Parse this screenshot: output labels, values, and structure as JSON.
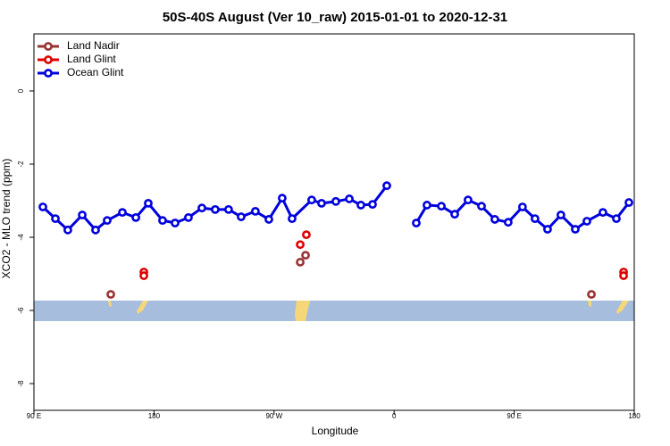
{
  "chart_data": {
    "type": "line",
    "title": "50S-40S August (Ver 10_raw)   2015-01-01 to 2020-12-31",
    "x_label": "Longitude",
    "y_label": "XCO2 - MLO trend (ppm)",
    "xlim": [
      90,
      540
    ],
    "ylim": [
      -8.73,
      1.56
    ],
    "xticks": [
      {
        "value": 90,
        "label": "90 E"
      },
      180,
      {
        "value": 270,
        "label": "90 W"
      },
      {
        "value": 360,
        "label": "0"
      },
      {
        "value": 450,
        "label": "90 E"
      },
      {
        "value": 540,
        "label": "180"
      }
    ],
    "yticks": [
      0,
      -2,
      -4,
      -6,
      -8
    ],
    "grid": false,
    "legend": "top-left",
    "series": [
      {
        "name": "Land Nadir",
        "color": "#993333",
        "line": false,
        "x": [
          147.6,
          289.6,
          293.6,
          507.9
        ],
        "values": [
          -5.56,
          -4.68,
          -4.49,
          -5.56
        ]
      },
      {
        "name": "Land Glint",
        "color": "#e00000",
        "line": false,
        "x": [
          172.4,
          172.4,
          289.6,
          294.2,
          532,
          532
        ],
        "values": [
          -4.95,
          -5.05,
          -4.2,
          -3.93,
          -4.95,
          -5.05
        ]
      },
      {
        "name": "Ocean Glint",
        "color": "#0000dd",
        "line": true,
        "x": [
          96.7,
          106.1,
          115.4,
          126.2,
          136.2,
          144.9,
          156.3,
          166.4,
          175.7,
          186.4,
          195.8,
          205.8,
          215.9,
          225.9,
          235.9,
          245.3,
          256,
          266.1,
          276.1,
          283.5,
          298.2,
          305.6,
          316.3,
          326.4,
          335.1,
          343.8,
          354.5,
          365,
          376.6,
          384.6,
          395.4,
          405.4,
          415.4,
          425.5,
          435.5,
          445.5,
          456.2,
          465.6,
          475,
          485,
          495.8,
          504.5,
          516.5,
          526.6,
          536
        ],
        "values": [
          -3.17,
          -3.49,
          -3.8,
          -3.39,
          -3.8,
          -3.54,
          -3.32,
          -3.46,
          -3.07,
          -3.54,
          -3.61,
          -3.46,
          -3.2,
          -3.24,
          -3.24,
          -3.44,
          -3.29,
          -3.51,
          -2.93,
          -3.49,
          -2.98,
          -3.07,
          -3.02,
          -2.95,
          -3.12,
          -3.1,
          -2.59,
          null,
          -3.61,
          -3.12,
          -3.15,
          -3.37,
          -2.98,
          -3.15,
          -3.51,
          -3.59,
          -3.17,
          -3.49,
          -3.78,
          -3.39,
          -3.78,
          -3.56,
          -3.32,
          -3.49,
          -3.05
        ]
      }
    ]
  }
}
